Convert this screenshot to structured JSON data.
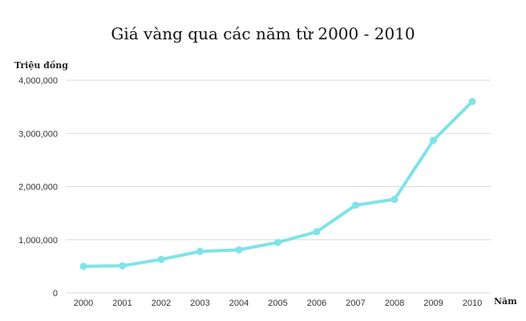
{
  "chart_data": {
    "type": "line",
    "title": "Giá vàng qua các năm từ 2000 - 2010",
    "xlabel": "Năm",
    "ylabel": "Triệu đồng",
    "ylim": [
      0,
      4000000
    ],
    "yticks": [
      "0",
      "1,000,000",
      "2,000,000",
      "3,000,000",
      "4,000,000"
    ],
    "categories": [
      "2000",
      "2001",
      "2002",
      "2003",
      "2004",
      "2005",
      "2006",
      "2007",
      "2008",
      "2009",
      "2010"
    ],
    "series": [
      {
        "values": [
          500000,
          510000,
          630000,
          780000,
          810000,
          950000,
          1150000,
          1650000,
          1760000,
          2870000,
          3600000
        ],
        "color": "#7fe3e8"
      }
    ],
    "grid": true
  }
}
